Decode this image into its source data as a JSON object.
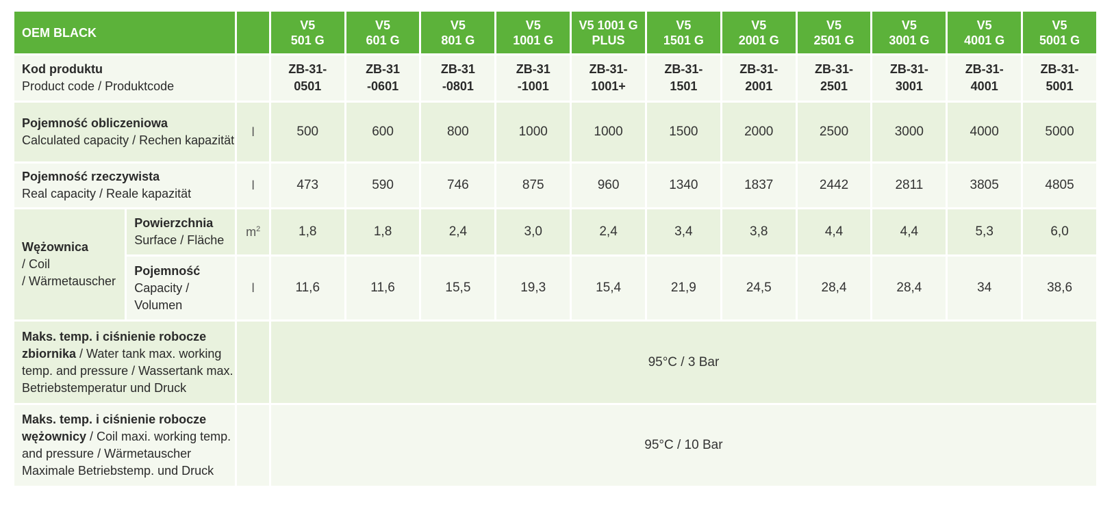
{
  "header": {
    "title": "OEM BLACK",
    "models": [
      [
        "V5",
        "501 G"
      ],
      [
        "V5",
        "601 G"
      ],
      [
        "V5",
        "801 G"
      ],
      [
        "V5",
        "1001 G"
      ],
      [
        "V5 1001 G",
        "PLUS"
      ],
      [
        "V5",
        "1501 G"
      ],
      [
        "V5",
        "2001 G"
      ],
      [
        "V5",
        "2501 G"
      ],
      [
        "V5",
        "3001 G"
      ],
      [
        "V5",
        "4001 G"
      ],
      [
        "V5",
        "5001 G"
      ]
    ]
  },
  "rows": {
    "product_code": {
      "label_bold": "Kod produktu",
      "label_rest": "Product code / Produktcode",
      "values": [
        [
          "ZB-31-",
          "0501"
        ],
        [
          "ZB-31",
          "-0601"
        ],
        [
          "ZB-31",
          "-0801"
        ],
        [
          "ZB-31",
          "-1001"
        ],
        [
          "ZB-31-",
          "1001+"
        ],
        [
          "ZB-31-",
          "1501"
        ],
        [
          "ZB-31-",
          "2001"
        ],
        [
          "ZB-31-",
          "2501"
        ],
        [
          "ZB-31-",
          "3001"
        ],
        [
          "ZB-31-",
          "4001"
        ],
        [
          "ZB-31-",
          "5001"
        ]
      ]
    },
    "calc_capacity": {
      "label_bold": "Pojemność obliczeniowa",
      "label_rest": "Calculated capacity / Rechen kapazität",
      "unit": "l",
      "values": [
        "500",
        "600",
        "800",
        "1000",
        "1000",
        "1500",
        "2000",
        "2500",
        "3000",
        "4000",
        "5000"
      ]
    },
    "real_capacity": {
      "label_bold": "Pojemność rzeczywista",
      "label_rest": "Real capacity / Reale kapazität",
      "unit": "l",
      "values": [
        "473",
        "590",
        "746",
        "875",
        "960",
        "1340",
        "1837",
        "2442",
        "2811",
        "3805",
        "4805"
      ]
    },
    "coil": {
      "label_bold": "Wężownica",
      "label_rest1": "/ Coil",
      "label_rest2": "/ Wärmetauscher",
      "surface": {
        "label_bold": "Powierzchnia",
        "label_rest": "Surface / Fläche",
        "unit": "m",
        "unit_sup": "2",
        "values": [
          "1,8",
          "1,8",
          "2,4",
          "3,0",
          "2,4",
          "3,4",
          "3,8",
          "4,4",
          "4,4",
          "5,3",
          "6,0"
        ]
      },
      "capacity": {
        "label_bold": "Pojemność",
        "label_rest": "Capacity / Volumen",
        "unit": "l",
        "values": [
          "11,6",
          "11,6",
          "15,5",
          "19,3",
          "15,4",
          "21,9",
          "24,5",
          "28,4",
          "28,4",
          "34",
          "38,6"
        ]
      }
    },
    "tank_max": {
      "label_bold": "Maks. temp. i ciśnienie robocze zbiornika",
      "label_rest": " / Water tank max. working temp. and pressure / Wassertank max. Betriebstemperatur und Druck",
      "value": "95°C / 3 Bar"
    },
    "coil_max": {
      "label_bold": "Maks. temp. i ciśnienie robocze wężownicy",
      "label_rest": " / Coil maxi. working temp. and pressure / Wärmetauscher Maximale Betriebstemp. und Druck",
      "value": "95°C / 10 Bar"
    }
  }
}
